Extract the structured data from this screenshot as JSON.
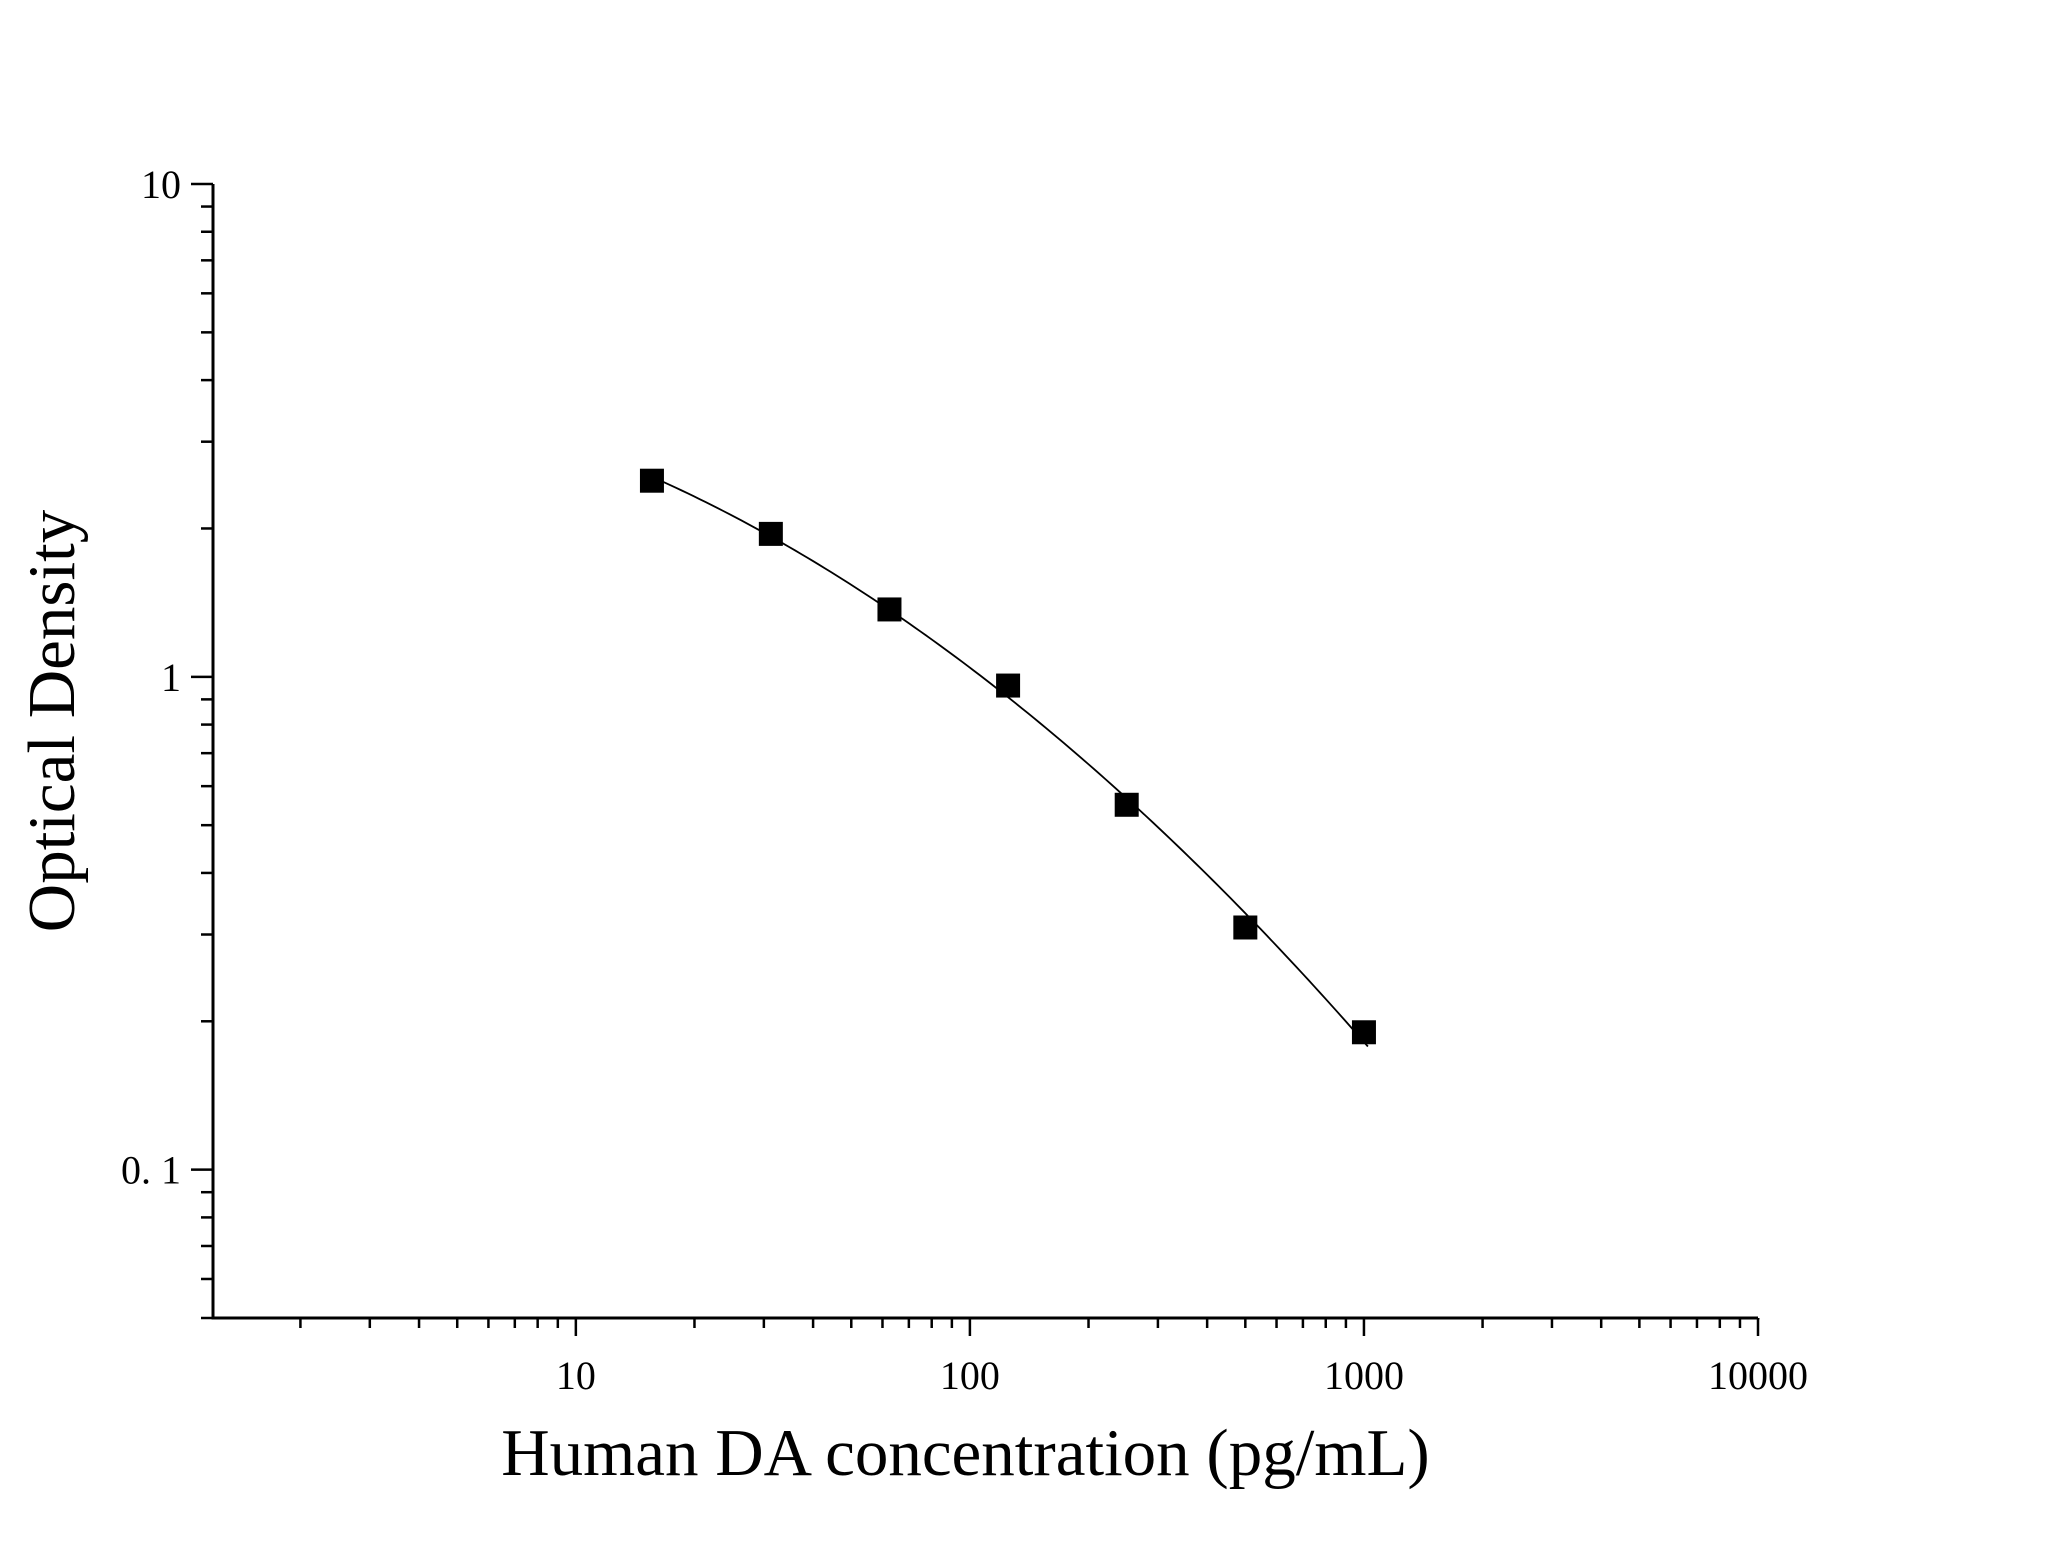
{
  "chart_data": {
    "type": "scatter",
    "title": "",
    "xlabel": "Human DA concentration (pg/mL)",
    "ylabel": "Optical Density",
    "x_scale": "log",
    "y_scale": "log",
    "xlim": [
      1.2,
      10000
    ],
    "ylim": [
      0.05,
      10
    ],
    "x_tick_labels": [
      "10",
      "100",
      "1000",
      "10000"
    ],
    "y_tick_labels": [
      "0. 1",
      "1",
      "10"
    ],
    "grid": false,
    "legend": "none",
    "marker": "square",
    "colors": {
      "marker": "#000000",
      "curve": "#000000",
      "axis": "#000000"
    },
    "series": [
      {
        "x": [
          15.6,
          31.25,
          62.5,
          125,
          250,
          500,
          1000
        ],
        "y": [
          2.5,
          1.95,
          1.37,
          0.96,
          0.55,
          0.31,
          0.19
        ],
        "fit_curve": true
      }
    ]
  }
}
